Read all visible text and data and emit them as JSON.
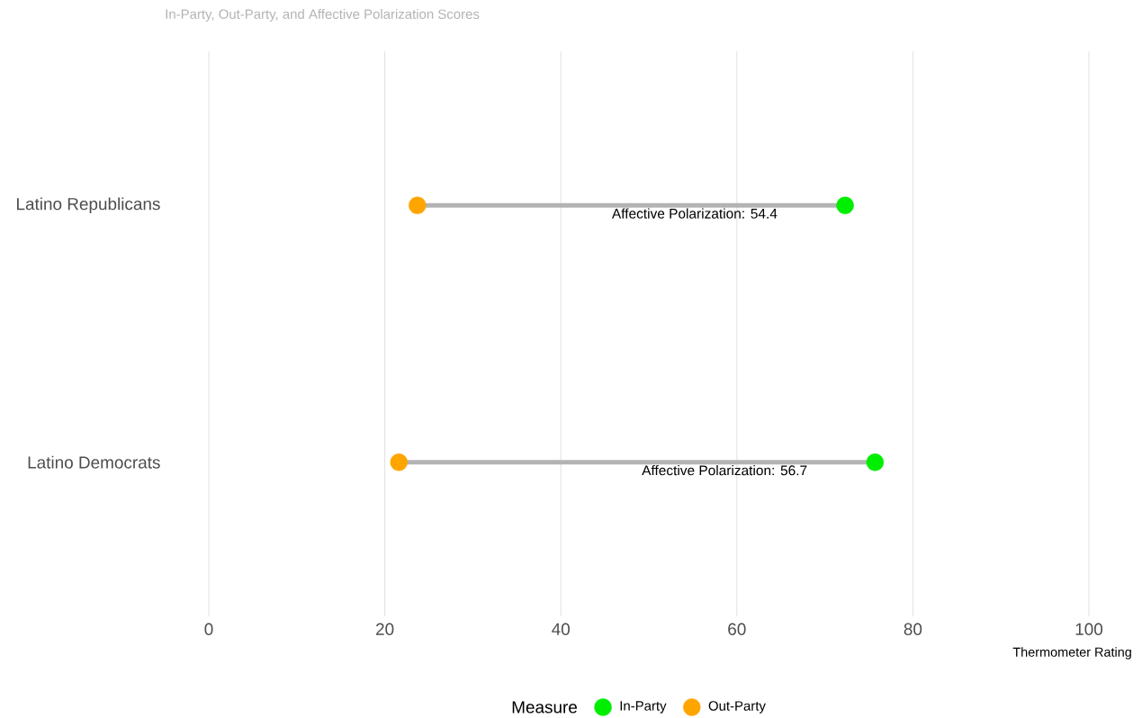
{
  "chart_data": {
    "type": "scatter",
    "orientation": "horizontal",
    "title": "In-Party, Out-Party, and Affective Polarization Scores",
    "xlabel": "Thermometer Rating",
    "legend_title": "Measure",
    "categories": [
      "Latino Republicans",
      "Latino Democrats"
    ],
    "series": [
      {
        "name": "In-Party",
        "color": "#00ee00",
        "values": [
          72.3,
          75.7
        ]
      },
      {
        "name": "Out-Party",
        "color": "#ffa500",
        "values": [
          23.7,
          21.6
        ]
      }
    ],
    "annotations": [
      "Affective Polarization: 54.4",
      "Affective Polarization: 56.7"
    ],
    "xlim": [
      0,
      100
    ],
    "xticks": [
      0,
      20,
      40,
      60,
      80,
      100
    ],
    "grid": "x",
    "legend": "bottom",
    "marker": "circle"
  }
}
